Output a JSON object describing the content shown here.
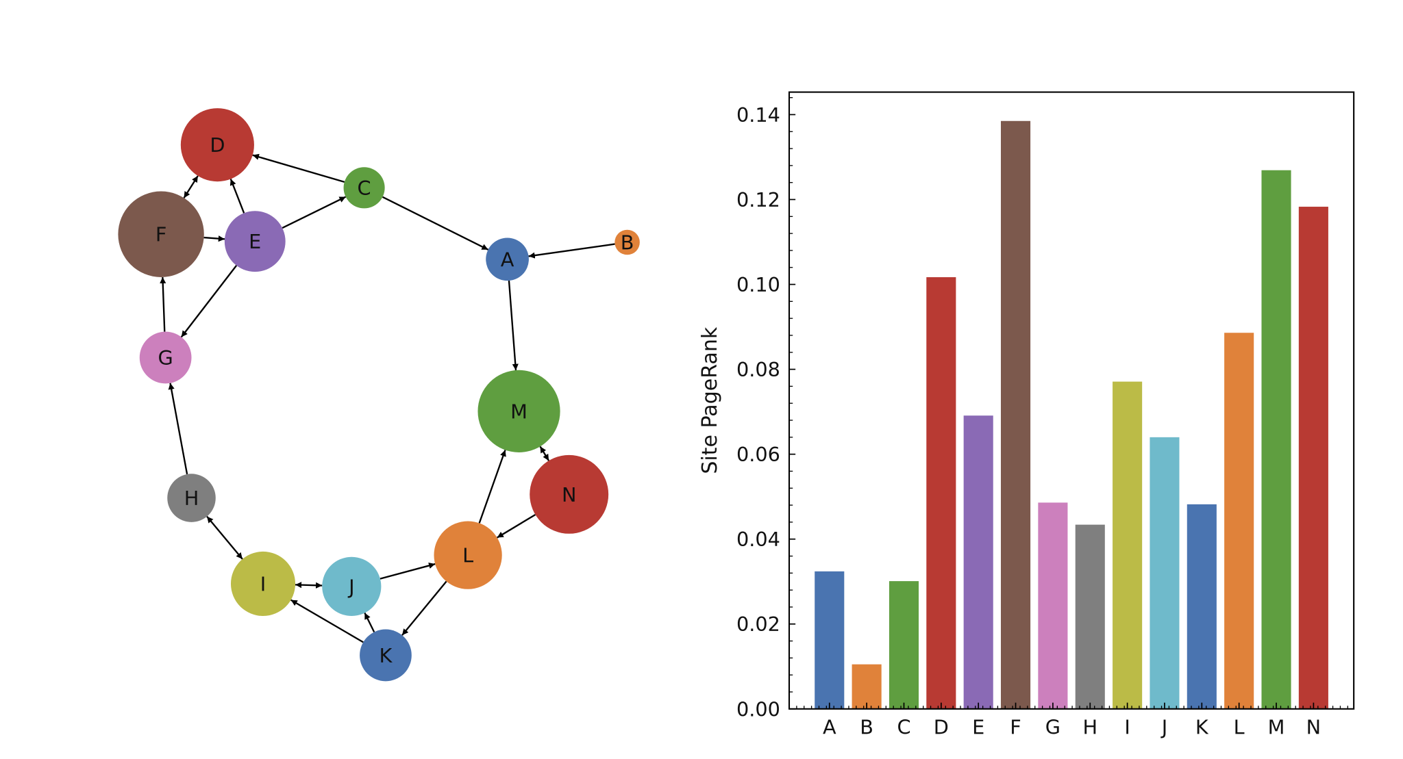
{
  "graph": {
    "nodes": [
      {
        "id": "A",
        "color": "#4a74b0"
      },
      {
        "id": "B",
        "color": "#e0823a"
      },
      {
        "id": "C",
        "color": "#5f9e40"
      },
      {
        "id": "D",
        "color": "#b83a33"
      },
      {
        "id": "E",
        "color": "#8a6ab5"
      },
      {
        "id": "F",
        "color": "#7c594d"
      },
      {
        "id": "G",
        "color": "#cc80bd"
      },
      {
        "id": "H",
        "color": "#7f7f7f"
      },
      {
        "id": "I",
        "color": "#bbbb47"
      },
      {
        "id": "J",
        "color": "#6fbacb"
      },
      {
        "id": "K",
        "color": "#4a74b0"
      },
      {
        "id": "L",
        "color": "#e0823a"
      },
      {
        "id": "M",
        "color": "#5f9e40"
      },
      {
        "id": "N",
        "color": "#b83a33"
      }
    ],
    "edges": [
      [
        "C",
        "D"
      ],
      [
        "E",
        "D"
      ],
      [
        "D",
        "F"
      ],
      [
        "F",
        "D"
      ],
      [
        "F",
        "E"
      ],
      [
        "E",
        "C"
      ],
      [
        "C",
        "A"
      ],
      [
        "B",
        "A"
      ],
      [
        "A",
        "M"
      ],
      [
        "E",
        "G"
      ],
      [
        "G",
        "F"
      ],
      [
        "H",
        "G"
      ],
      [
        "H",
        "I"
      ],
      [
        "I",
        "H"
      ],
      [
        "I",
        "J"
      ],
      [
        "J",
        "I"
      ],
      [
        "J",
        "L"
      ],
      [
        "L",
        "M"
      ],
      [
        "N",
        "M"
      ],
      [
        "M",
        "N"
      ],
      [
        "N",
        "L"
      ],
      [
        "L",
        "K"
      ],
      [
        "K",
        "I"
      ],
      [
        "K",
        "J"
      ]
    ]
  },
  "chart_data": {
    "type": "bar",
    "title": "",
    "xlabel": "",
    "ylabel": "Site PageRank",
    "categories": [
      "A",
      "B",
      "C",
      "D",
      "E",
      "F",
      "G",
      "H",
      "I",
      "J",
      "K",
      "L",
      "M",
      "N"
    ],
    "values": [
      0.0324,
      0.0105,
      0.0301,
      0.1017,
      0.0691,
      0.1385,
      0.0486,
      0.0434,
      0.0771,
      0.064,
      0.0482,
      0.0886,
      0.1269,
      0.1183
    ],
    "colors": [
      "#4a74b0",
      "#e0823a",
      "#5f9e40",
      "#b83a33",
      "#8a6ab5",
      "#7c594d",
      "#cc80bd",
      "#7f7f7f",
      "#bbbb47",
      "#6fbacb",
      "#4a74b0",
      "#e0823a",
      "#5f9e40",
      "#b83a33"
    ],
    "ylim": [
      0,
      0.1453
    ],
    "yticks": [
      "0.00",
      "0.02",
      "0.04",
      "0.06",
      "0.08",
      "0.10",
      "0.12",
      "0.14"
    ],
    "grid": false
  }
}
